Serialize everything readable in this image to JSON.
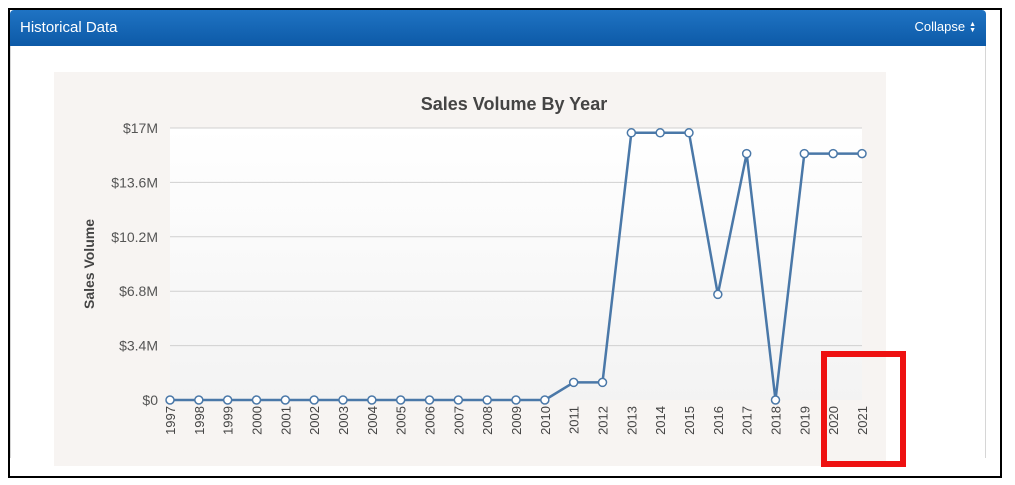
{
  "panel": {
    "title": "Historical Data",
    "collapse_label": "Collapse",
    "collapse_icon": "sort-caret-icon"
  },
  "colors": {
    "header": "#0d5aa7",
    "line": "#4a78a8",
    "highlight": "#ee1111",
    "grid": "#d0d0d0"
  },
  "chart_data": {
    "type": "line",
    "title": "Sales Volume By Year",
    "ylabel": "Sales Volume",
    "xlabel": "",
    "ylim": [
      0,
      17000000
    ],
    "yticks": [
      {
        "value": 0,
        "label": "$0"
      },
      {
        "value": 3400000,
        "label": "$3.4M"
      },
      {
        "value": 6800000,
        "label": "$6.8M"
      },
      {
        "value": 10200000,
        "label": "$10.2M"
      },
      {
        "value": 13600000,
        "label": "$13.6M"
      },
      {
        "value": 17000000,
        "label": "$17M"
      }
    ],
    "categories": [
      "1997",
      "1998",
      "1999",
      "2000",
      "2001",
      "2002",
      "2003",
      "2004",
      "2005",
      "2006",
      "2007",
      "2008",
      "2009",
      "2010",
      "2011",
      "2012",
      "2013",
      "2014",
      "2015",
      "2016",
      "2017",
      "2018",
      "2019",
      "2020",
      "2021"
    ],
    "series": [
      {
        "values": [
          0,
          0,
          0,
          0,
          0,
          0,
          0,
          0,
          0,
          0,
          0,
          0,
          0,
          0,
          1100000,
          1100000,
          16700000,
          16700000,
          16700000,
          6600000,
          15400000,
          0,
          15400000,
          15400000,
          15400000
        ]
      }
    ],
    "grid": true,
    "legend": "none"
  }
}
